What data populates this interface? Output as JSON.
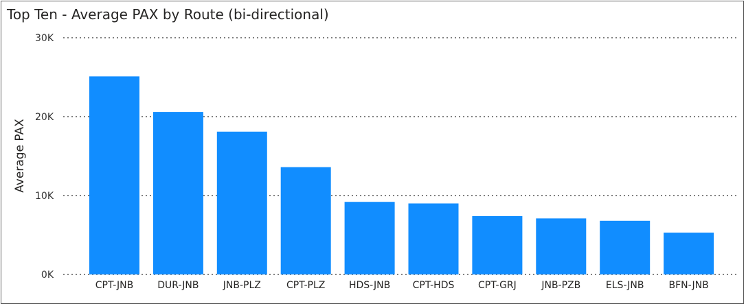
{
  "chart_data": {
    "type": "bar",
    "title": "Top Ten - Average PAX by Route (bi-directional)",
    "xlabel": "",
    "ylabel": "Average PAX",
    "ylim": [
      0,
      30000
    ],
    "yticks": [
      0,
      10000,
      20000,
      30000
    ],
    "ytick_labels": [
      "0K",
      "10K",
      "20K",
      "30K"
    ],
    "grid": true,
    "categories": [
      "CPT-JNB",
      "DUR-JNB",
      "JNB-PLZ",
      "CPT-PLZ",
      "HDS-JNB",
      "CPT-HDS",
      "CPT-GRJ",
      "JNB-PZB",
      "ELS-JNB",
      "BFN-JNB"
    ],
    "values": [
      25100,
      20600,
      18100,
      13600,
      9200,
      9000,
      7400,
      7100,
      6800,
      5300
    ],
    "bar_color": "#118DFF",
    "grid_color": "#7f7f7f"
  }
}
